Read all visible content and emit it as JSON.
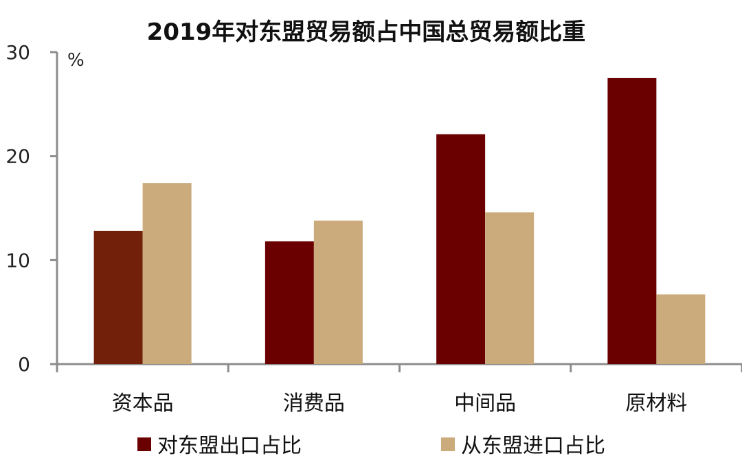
{
  "chart_data": {
    "type": "bar",
    "title": "2019年对东盟贸易额占中国总贸易额比重",
    "ylabel": "%",
    "xlabel": "",
    "ylim": [
      0,
      30
    ],
    "yticks": [
      "0",
      "10",
      "20",
      "30"
    ],
    "categories": [
      "资本品",
      "消费品",
      "中间品",
      "原材料"
    ],
    "series": [
      {
        "name": "对东盟出口占比",
        "values": [
          12.8,
          11.8,
          22.1,
          27.5
        ],
        "color": "#6b0000",
        "bar_colors": [
          "#72200a",
          "#6b0000",
          "#6b0000",
          "#6b0000"
        ]
      },
      {
        "name": "从东盟进口占比",
        "values": [
          17.4,
          13.8,
          14.6,
          6.7
        ],
        "color": "#cbab7c"
      }
    ],
    "legend_position": "bottom",
    "grid": false
  }
}
